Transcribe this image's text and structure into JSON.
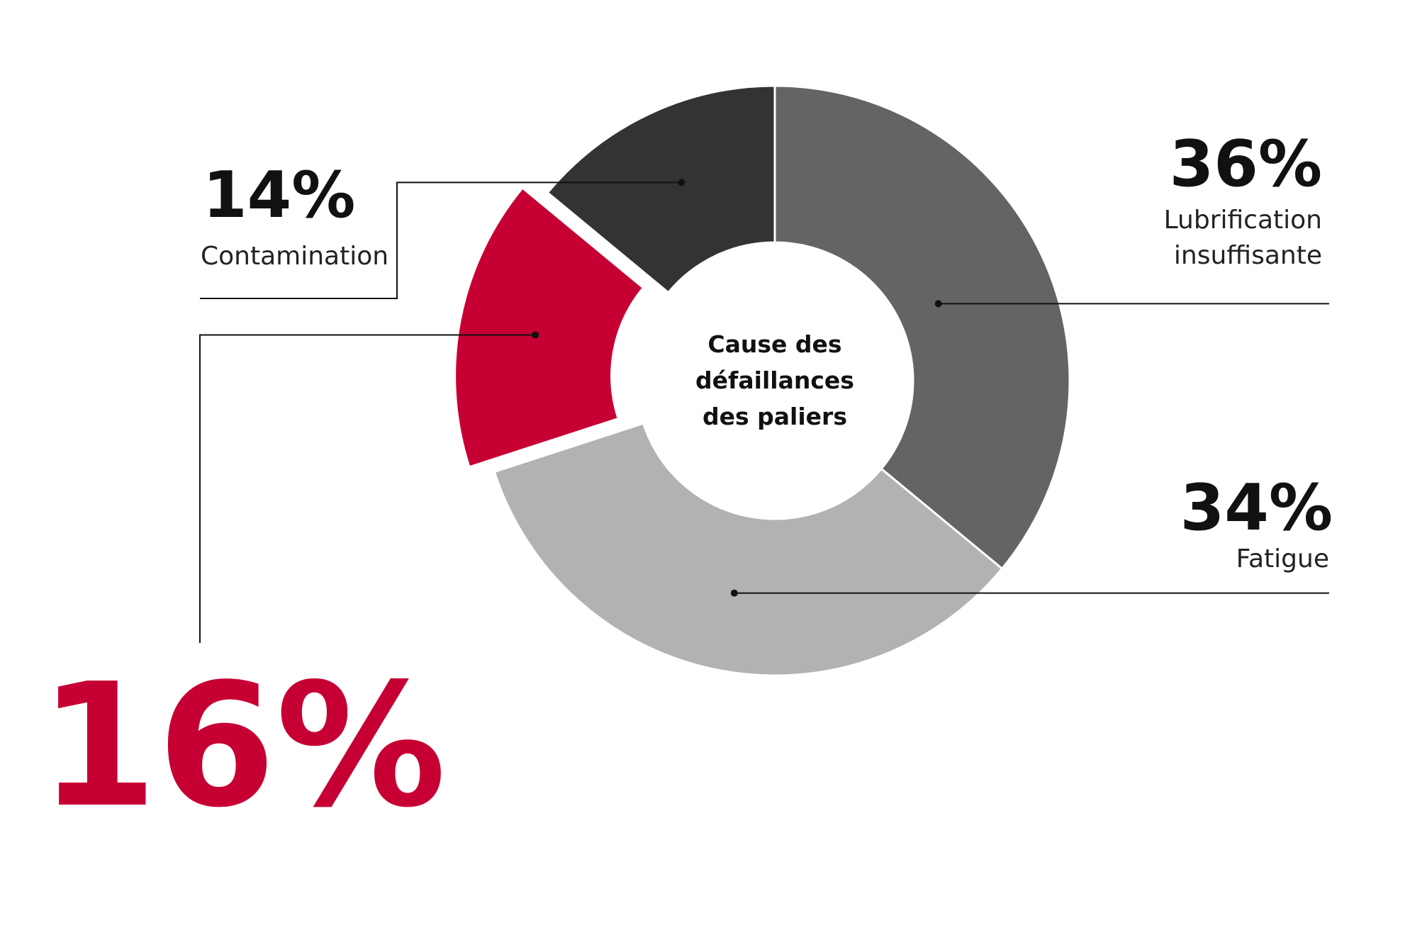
{
  "chart_data": {
    "type": "pie",
    "title": "Cause des défaillances des paliers",
    "title_lines": [
      "Cause des",
      "défaillances",
      "des paliers"
    ],
    "slices": [
      {
        "label": "Lubrification insuffisante",
        "label_lines": [
          "Lubrification",
          "insuffisante"
        ],
        "value": 36,
        "value_label": "36%",
        "color": "#646464"
      },
      {
        "label": "Fatigue",
        "label_lines": [
          "Fatigue"
        ],
        "value": 34,
        "value_label": "34%",
        "color": "#b2b2b2"
      },
      {
        "label": "",
        "label_lines": [],
        "value": 16,
        "value_label": "16%",
        "color": "#c70034",
        "highlighted": true
      },
      {
        "label": "Contamination",
        "label_lines": [
          "Contamination"
        ],
        "value": 14,
        "value_label": "14%",
        "color": "#333333"
      }
    ],
    "start_angle_deg": 0,
    "direction": "clockwise",
    "donut": true
  },
  "colors": {
    "accent": "#c70034",
    "text": "#111111",
    "line": "#111111"
  }
}
